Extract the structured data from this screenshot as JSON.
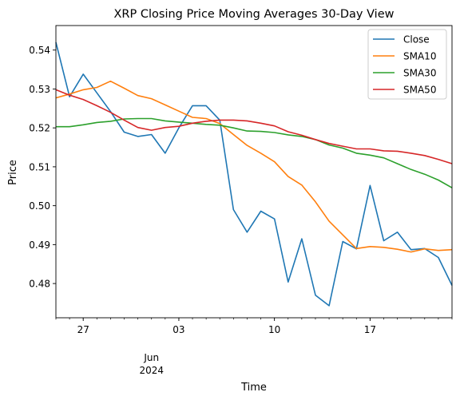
{
  "chart_data": {
    "type": "line",
    "title": "XRP Closing Price Moving Averages 30-Day View",
    "xlabel": "Time",
    "ylabel": "Price",
    "xlim": [
      0,
      29
    ],
    "ylim": [
      0.4712,
      0.5463
    ],
    "grid": false,
    "legend_position": "top-right",
    "x_ticks": [
      {
        "x": 2,
        "label": "27"
      },
      {
        "x": 9,
        "label": "03"
      },
      {
        "x": 16,
        "label": "10"
      },
      {
        "x": 23,
        "label": "17"
      }
    ],
    "x_secondary_labels": [
      {
        "x": 7,
        "line1": "Jun",
        "line2": "2024"
      }
    ],
    "y_ticks": [
      {
        "v": 0.48,
        "label": "0.48"
      },
      {
        "v": 0.49,
        "label": "0.49"
      },
      {
        "v": 0.5,
        "label": "0.50"
      },
      {
        "v": 0.51,
        "label": "0.51"
      },
      {
        "v": 0.52,
        "label": "0.52"
      },
      {
        "v": 0.53,
        "label": "0.53"
      },
      {
        "v": 0.54,
        "label": "0.54"
      }
    ],
    "x": [
      0,
      1,
      2,
      3,
      4,
      5,
      6,
      7,
      8,
      9,
      10,
      11,
      12,
      13,
      14,
      15,
      16,
      17,
      18,
      19,
      20,
      21,
      22,
      23,
      24,
      25,
      26,
      27,
      28,
      29
    ],
    "series": [
      {
        "name": "Close",
        "color": "#1f77b4",
        "values": [
          0.542,
          0.528,
          0.5338,
          0.529,
          0.5242,
          0.5189,
          0.5178,
          0.5183,
          0.5135,
          0.52,
          0.5257,
          0.5257,
          0.522,
          0.499,
          0.4932,
          0.4986,
          0.4966,
          0.4804,
          0.4915,
          0.477,
          0.4743,
          0.4908,
          0.4889,
          0.5052,
          0.491,
          0.4932,
          0.4887,
          0.489,
          0.4867,
          0.4795
        ]
      },
      {
        "name": "SMA10",
        "color": "#ff7f0e",
        "values": [
          0.5277,
          0.5287,
          0.5298,
          0.5304,
          0.532,
          0.5302,
          0.5283,
          0.5275,
          0.5259,
          0.5243,
          0.5227,
          0.5224,
          0.5211,
          0.5183,
          0.5155,
          0.5135,
          0.5113,
          0.5075,
          0.5053,
          0.501,
          0.496,
          0.4925,
          0.489,
          0.4895,
          0.4893,
          0.4888,
          0.4881,
          0.4889,
          0.4885,
          0.4887
        ]
      },
      {
        "name": "SMA30",
        "color": "#2ca02c",
        "values": [
          0.5203,
          0.5203,
          0.5208,
          0.5214,
          0.5217,
          0.5223,
          0.5224,
          0.5224,
          0.5218,
          0.5215,
          0.5212,
          0.5209,
          0.5207,
          0.52,
          0.5192,
          0.5191,
          0.5188,
          0.5182,
          0.5178,
          0.517,
          0.5156,
          0.5148,
          0.5135,
          0.513,
          0.5123,
          0.5108,
          0.5093,
          0.5081,
          0.5066,
          0.5046
        ]
      },
      {
        "name": "SMA50",
        "color": "#d62728",
        "values": [
          0.5298,
          0.5284,
          0.5273,
          0.5257,
          0.524,
          0.522,
          0.5201,
          0.5194,
          0.5201,
          0.5204,
          0.5212,
          0.5217,
          0.522,
          0.522,
          0.5218,
          0.5212,
          0.5205,
          0.519,
          0.5181,
          0.517,
          0.516,
          0.5153,
          0.5146,
          0.5146,
          0.5141,
          0.514,
          0.5135,
          0.5129,
          0.5119,
          0.5108
        ]
      }
    ]
  }
}
